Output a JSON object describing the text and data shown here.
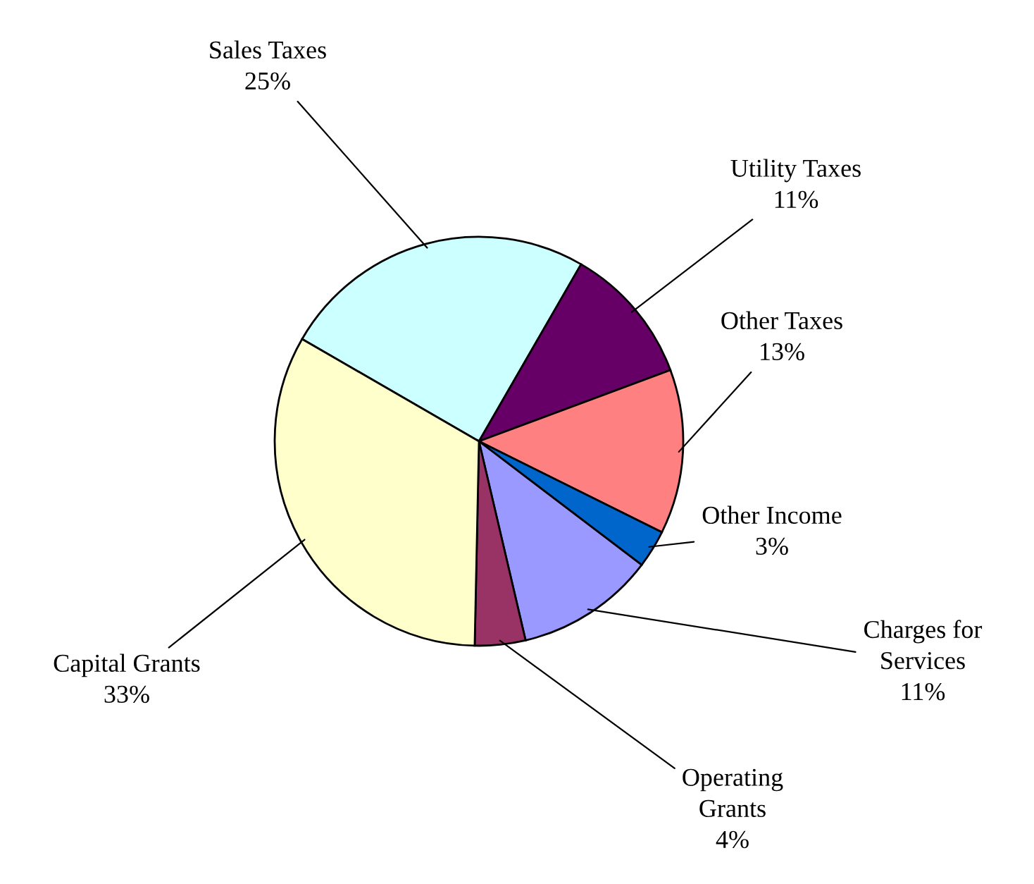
{
  "chart_data": {
    "type": "pie",
    "categories": [
      "Sales Taxes",
      "Utility Taxes",
      "Other Taxes",
      "Other Income",
      "Charges for\nServices",
      "Operating\nGrants",
      "Capital Grants"
    ],
    "values": [
      25,
      11,
      13,
      3,
      11,
      4,
      33
    ],
    "colors": [
      "#ccffff",
      "#660066",
      "#ff8080",
      "#0066cc",
      "#9999ff",
      "#993366",
      "#ffffcc"
    ],
    "value_labels": [
      "25%",
      "11%",
      "13%",
      "3%",
      "11%",
      "4%",
      "33%"
    ],
    "legend": false
  }
}
